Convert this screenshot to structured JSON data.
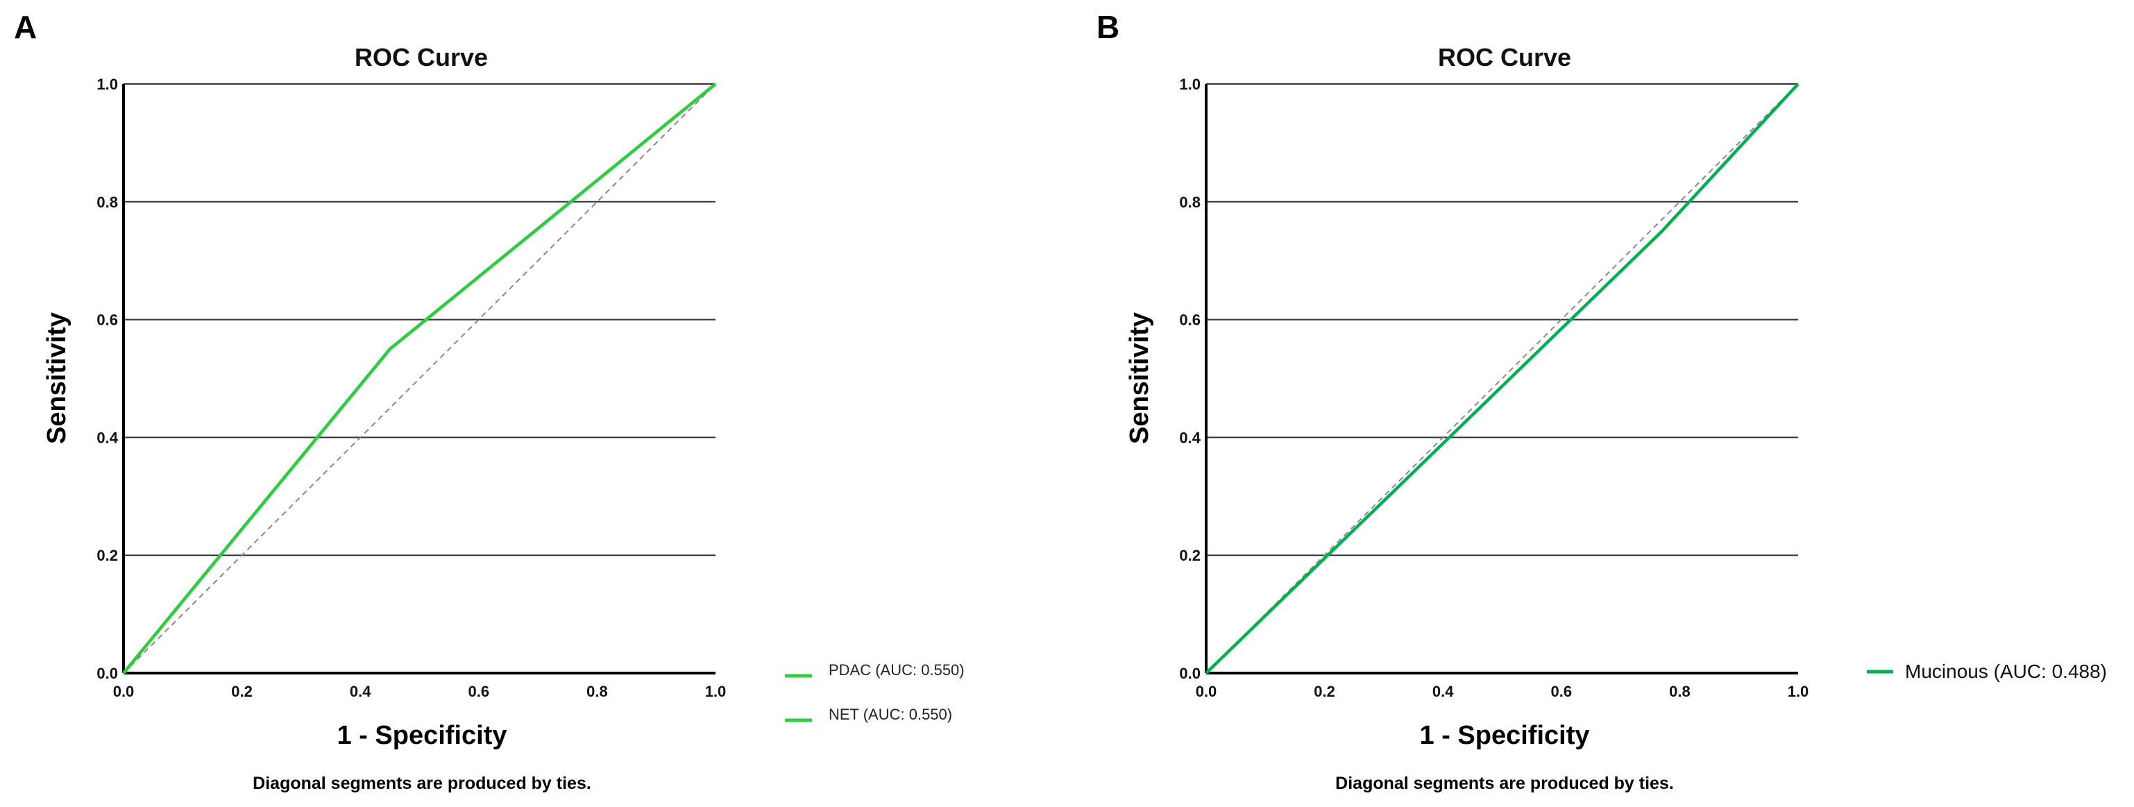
{
  "chart_data": [
    {
      "panel": "A",
      "type": "line",
      "title": "ROC Curve",
      "xlabel": "1 - Specificity",
      "ylabel": "Sensitivity",
      "xlim": [
        0,
        1
      ],
      "ylim": [
        0,
        1
      ],
      "xticks": [
        "0.0",
        "0.2",
        "0.4",
        "0.6",
        "0.8",
        "1.0"
      ],
      "yticks": [
        "0.0",
        "0.2",
        "0.4",
        "0.6",
        "0.8",
        "1.0"
      ],
      "grid": "horizontal",
      "footnote": "Diagonal segments are produced by ties.",
      "reference_line": {
        "x": [
          0,
          1
        ],
        "y": [
          0,
          1
        ],
        "style": "dashed",
        "color": "#888888"
      },
      "series": [
        {
          "name": "PDAC (AUC: 0.550)",
          "color": "#2ecc40",
          "x": [
            0,
            0.45,
            1
          ],
          "y": [
            0,
            0.55,
            1
          ]
        },
        {
          "name": "NET (AUC: 0.550)",
          "color": "#2ecc40",
          "x": [
            0,
            0.45,
            1
          ],
          "y": [
            0,
            0.55,
            1
          ]
        }
      ],
      "legend_position": "right"
    },
    {
      "panel": "B",
      "type": "line",
      "title": "ROC Curve",
      "xlabel": "1 - Specificity",
      "ylabel": "Sensitivity",
      "xlim": [
        0,
        1
      ],
      "ylim": [
        0,
        1
      ],
      "xticks": [
        "0.0",
        "0.2",
        "0.4",
        "0.6",
        "0.8",
        "1.0"
      ],
      "yticks": [
        "0.0",
        "0.2",
        "0.4",
        "0.6",
        "0.8",
        "1.0"
      ],
      "grid": "horizontal",
      "footnote": "Diagonal segments are produced by ties.",
      "reference_line": {
        "x": [
          0,
          1
        ],
        "y": [
          0,
          1
        ],
        "style": "dashed",
        "color": "#888888"
      },
      "series": [
        {
          "name": "Mucinous (AUC: 0.488)",
          "color": "#00b050",
          "x": [
            0,
            0.77,
            1
          ],
          "y": [
            0,
            0.75,
            1
          ]
        }
      ],
      "legend_position": "right"
    }
  ]
}
